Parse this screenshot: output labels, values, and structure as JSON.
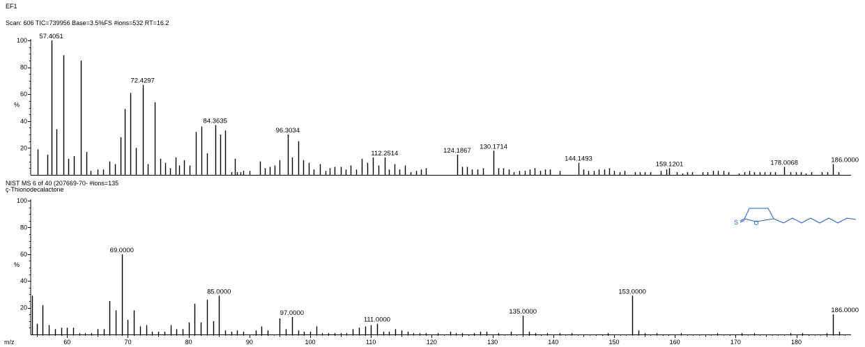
{
  "header": {
    "file_label": "EF1",
    "scan_line": "Scan: 606  TIC=739956  Base=3.5%FS  #ions=532  RT=16.2"
  },
  "library": {
    "line1": "NIST MS 6 of 40 (207669-70-  #ions=135",
    "line2": "ç-Thionodecalactone"
  },
  "chart_data": [
    {
      "type": "bar",
      "title": "Scan: 606  TIC=739956  Base=3.5%FS  #ions=532  RT=16.2",
      "ylabel": "%",
      "ylim": [
        0,
        100
      ],
      "yticks": [
        20,
        40,
        60,
        80,
        100
      ],
      "ytick_labels": [
        "20",
        "40",
        "60",
        "80",
        "100"
      ],
      "xlim": [
        54,
        189
      ],
      "xlabel": "m/z",
      "peaks": [
        [
          55.2,
          19
        ],
        [
          56.8,
          15
        ],
        [
          57.4051,
          100
        ],
        [
          58.3,
          34
        ],
        [
          59.4,
          89
        ],
        [
          60.2,
          12
        ],
        [
          61.1,
          14
        ],
        [
          62.3,
          85
        ],
        [
          63.2,
          17
        ],
        [
          63.9,
          3
        ],
        [
          65.0,
          4
        ],
        [
          65.9,
          4
        ],
        [
          67.0,
          10
        ],
        [
          67.9,
          8
        ],
        [
          68.8,
          28
        ],
        [
          69.5,
          49
        ],
        [
          70.4,
          61
        ],
        [
          71.3,
          20
        ],
        [
          72.4297,
          67
        ],
        [
          73.3,
          8
        ],
        [
          74.4,
          54
        ],
        [
          75.3,
          12
        ],
        [
          76.1,
          9
        ],
        [
          76.9,
          5
        ],
        [
          77.8,
          13
        ],
        [
          78.4,
          7
        ],
        [
          79.2,
          11
        ],
        [
          80.1,
          7
        ],
        [
          81.2,
          32
        ],
        [
          82.1,
          36
        ],
        [
          83.0,
          16
        ],
        [
          84.3635,
          37
        ],
        [
          85.2,
          30
        ],
        [
          86.0,
          33
        ],
        [
          87.0,
          2
        ],
        [
          87.6,
          12
        ],
        [
          88.0,
          2
        ],
        [
          88.5,
          2
        ],
        [
          89.0,
          3
        ],
        [
          90.0,
          3
        ],
        [
          91.7,
          10
        ],
        [
          92.5,
          5
        ],
        [
          93.3,
          6
        ],
        [
          94.1,
          7
        ],
        [
          95.0,
          11
        ],
        [
          96.3034,
          30
        ],
        [
          97.0,
          13
        ],
        [
          98.0,
          25
        ],
        [
          98.9,
          11
        ],
        [
          99.8,
          9
        ],
        [
          100.6,
          4
        ],
        [
          101.6,
          8
        ],
        [
          102.5,
          3
        ],
        [
          103.2,
          5
        ],
        [
          104.0,
          6
        ],
        [
          105.0,
          6
        ],
        [
          105.8,
          4
        ],
        [
          106.7,
          7
        ],
        [
          107.6,
          4
        ],
        [
          108.5,
          12
        ],
        [
          109.4,
          9
        ],
        [
          110.3,
          13
        ],
        [
          111.2,
          7
        ],
        [
          112.2514,
          13
        ],
        [
          113.0,
          4
        ],
        [
          113.9,
          8
        ],
        [
          114.7,
          4
        ],
        [
          115.6,
          7
        ],
        [
          116.5,
          2
        ],
        [
          117.4,
          3
        ],
        [
          118.2,
          4
        ],
        [
          119.0,
          5
        ],
        [
          124.1867,
          15
        ],
        [
          125.0,
          6
        ],
        [
          125.8,
          6
        ],
        [
          126.6,
          4
        ],
        [
          127.5,
          4
        ],
        [
          128.4,
          5
        ],
        [
          130.1714,
          18
        ],
        [
          131.0,
          5
        ],
        [
          131.8,
          5
        ],
        [
          132.7,
          4
        ],
        [
          133.5,
          2
        ],
        [
          134.4,
          3
        ],
        [
          135.3,
          3
        ],
        [
          136.1,
          4
        ],
        [
          136.9,
          5
        ],
        [
          137.8,
          3
        ],
        [
          138.6,
          4
        ],
        [
          139.5,
          4
        ],
        [
          141.1,
          3
        ],
        [
          144.1493,
          9
        ],
        [
          145.0,
          4
        ],
        [
          145.8,
          3
        ],
        [
          146.7,
          3
        ],
        [
          147.5,
          4
        ],
        [
          148.4,
          4
        ],
        [
          149.2,
          5
        ],
        [
          150.0,
          3
        ],
        [
          150.9,
          2
        ],
        [
          151.7,
          3
        ],
        [
          153.4,
          2
        ],
        [
          154.3,
          2
        ],
        [
          155.1,
          2
        ],
        [
          156.0,
          2
        ],
        [
          157.7,
          3
        ],
        [
          158.6,
          4
        ],
        [
          159.1201,
          5
        ],
        [
          160.3,
          2
        ],
        [
          161.2,
          1
        ],
        [
          162.0,
          2
        ],
        [
          162.9,
          2
        ],
        [
          164.6,
          2
        ],
        [
          165.4,
          2
        ],
        [
          166.3,
          3
        ],
        [
          167.1,
          3
        ],
        [
          168.0,
          3
        ],
        [
          168.8,
          2
        ],
        [
          170.5,
          1
        ],
        [
          171.4,
          2
        ],
        [
          172.2,
          3
        ],
        [
          173.1,
          2
        ],
        [
          174.0,
          2
        ],
        [
          174.8,
          2
        ],
        [
          175.7,
          2
        ],
        [
          176.5,
          2
        ],
        [
          178.0068,
          6
        ],
        [
          179.0,
          2
        ],
        [
          179.9,
          2
        ],
        [
          180.7,
          2
        ],
        [
          181.6,
          1
        ],
        [
          182.5,
          2
        ],
        [
          184.2,
          2
        ],
        [
          185.1,
          2
        ],
        [
          186.0,
          8
        ],
        [
          186.9,
          2
        ]
      ],
      "peak_labels": [
        {
          "x": 57.4051,
          "text": "57.4051"
        },
        {
          "x": 72.4297,
          "text": "72.4297"
        },
        {
          "x": 84.3635,
          "text": "84.3635"
        },
        {
          "x": 96.3034,
          "text": "96.3034"
        },
        {
          "x": 112.2514,
          "text": "112.2514"
        },
        {
          "x": 124.1867,
          "text": "124.1867"
        },
        {
          "x": 130.1714,
          "text": "130.1714"
        },
        {
          "x": 144.1493,
          "text": "144.1493"
        },
        {
          "x": 159.1201,
          "text": "159.1201"
        },
        {
          "x": 178.0068,
          "text": "178.0068"
        },
        {
          "x": 186.0,
          "text": "186.0000"
        }
      ]
    },
    {
      "type": "bar",
      "title": "NIST MS 6 of 40 (207669-70-  #ions=135",
      "ylabel": "%",
      "ylim": [
        0,
        100
      ],
      "yticks": [
        20,
        40,
        60,
        80,
        100
      ],
      "ytick_labels": [
        "20",
        "40",
        "60",
        "80",
        "100"
      ],
      "xlim": [
        54,
        189
      ],
      "xlabel": "m/z",
      "xticks": [
        60,
        70,
        80,
        90,
        100,
        110,
        120,
        130,
        140,
        150,
        160,
        170,
        180
      ],
      "xtick_labels": [
        "60",
        "70",
        "80",
        "90",
        "100",
        "110",
        "120",
        "130",
        "140",
        "150",
        "160",
        "170",
        "180"
      ],
      "peaks": [
        [
          54.2,
          29
        ],
        [
          55.0,
          8
        ],
        [
          56.0,
          22
        ],
        [
          57.0,
          7
        ],
        [
          58.0,
          4
        ],
        [
          59.0,
          5
        ],
        [
          60.0,
          5
        ],
        [
          61.0,
          5
        ],
        [
          62.0,
          1
        ],
        [
          63.0,
          1
        ],
        [
          64.0,
          1
        ],
        [
          65.0,
          4
        ],
        [
          66.0,
          4
        ],
        [
          67.0,
          25
        ],
        [
          68.0,
          18
        ],
        [
          69.0,
          60
        ],
        [
          70.0,
          11
        ],
        [
          71.0,
          18
        ],
        [
          72.0,
          6
        ],
        [
          73.0,
          7
        ],
        [
          74.0,
          2
        ],
        [
          75.0,
          2
        ],
        [
          76.0,
          2
        ],
        [
          77.0,
          7
        ],
        [
          78.0,
          4
        ],
        [
          79.0,
          4
        ],
        [
          80.0,
          9
        ],
        [
          81.0,
          23
        ],
        [
          82.0,
          9
        ],
        [
          83.0,
          26
        ],
        [
          84.0,
          10
        ],
        [
          85.0,
          29
        ],
        [
          86.0,
          3
        ],
        [
          87.0,
          2
        ],
        [
          88.0,
          3
        ],
        [
          89.0,
          2
        ],
        [
          91.0,
          3
        ],
        [
          92.0,
          6
        ],
        [
          93.0,
          3
        ],
        [
          95.0,
          12
        ],
        [
          96.0,
          4
        ],
        [
          97.0,
          13
        ],
        [
          98.0,
          3
        ],
        [
          99.0,
          2
        ],
        [
          100.0,
          2
        ],
        [
          101.0,
          6
        ],
        [
          102.0,
          1
        ],
        [
          103.0,
          1
        ],
        [
          104.0,
          1
        ],
        [
          105.0,
          1
        ],
        [
          106.0,
          1
        ],
        [
          107.0,
          4
        ],
        [
          108.0,
          5
        ],
        [
          109.0,
          6
        ],
        [
          110.0,
          7
        ],
        [
          111.0,
          8
        ],
        [
          112.0,
          2
        ],
        [
          113.0,
          2
        ],
        [
          114.0,
          4
        ],
        [
          115.0,
          3
        ],
        [
          116.0,
          2
        ],
        [
          117.0,
          1
        ],
        [
          118.0,
          1
        ],
        [
          119.0,
          1
        ],
        [
          121.0,
          1
        ],
        [
          123.0,
          2
        ],
        [
          124.0,
          1
        ],
        [
          125.0,
          1
        ],
        [
          127.0,
          1
        ],
        [
          128.0,
          2
        ],
        [
          129.0,
          2
        ],
        [
          131.0,
          1
        ],
        [
          133.0,
          2
        ],
        [
          135.0,
          14
        ],
        [
          136.0,
          2
        ],
        [
          137.0,
          1
        ],
        [
          139.0,
          1
        ],
        [
          141.0,
          1
        ],
        [
          143.0,
          1
        ],
        [
          149.0,
          1
        ],
        [
          153.0,
          29
        ],
        [
          154.0,
          3
        ],
        [
          155.0,
          1
        ],
        [
          157.0,
          1
        ],
        [
          161.0,
          1
        ],
        [
          167.0,
          1
        ],
        [
          171.0,
          1
        ],
        [
          173.0,
          1
        ],
        [
          179.0,
          1
        ],
        [
          181.0,
          1
        ],
        [
          185.0,
          1
        ],
        [
          186.0,
          15
        ],
        [
          187.0,
          2
        ]
      ],
      "peak_labels": [
        {
          "x": 69.0,
          "text": "69.0000"
        },
        {
          "x": 85.0,
          "text": "85.0000"
        },
        {
          "x": 97.0,
          "text": "97.0000"
        },
        {
          "x": 111.0,
          "text": "111.0000"
        },
        {
          "x": 135.0,
          "text": "135.0000"
        },
        {
          "x": 153.0,
          "text": "153.0000"
        },
        {
          "x": 186.0,
          "text": "186.0000"
        }
      ],
      "structure": {
        "atom_labels": [
          "S",
          "O"
        ],
        "color": "#1f5fd6"
      }
    }
  ]
}
